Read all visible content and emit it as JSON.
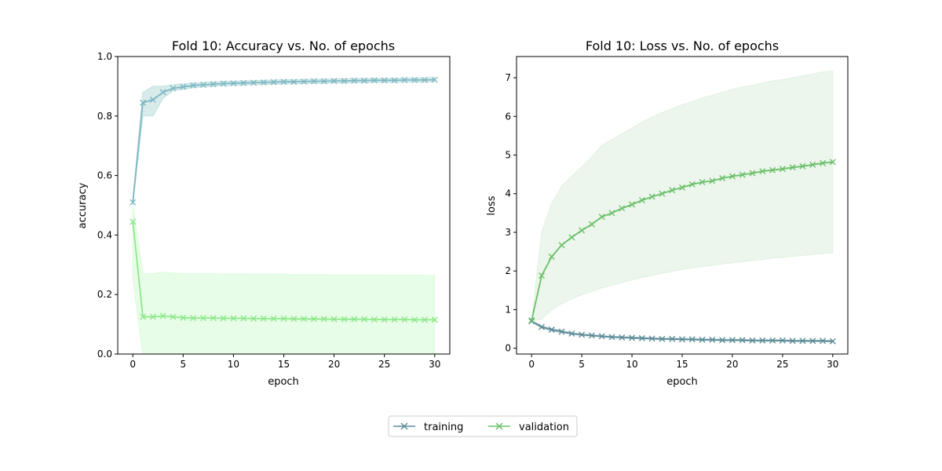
{
  "legend": {
    "entries": [
      {
        "label": "training",
        "color": "#5e8d99"
      },
      {
        "label": "validation",
        "color": "#6abf69"
      }
    ],
    "placement": "bottom-center"
  },
  "chart_data": [
    {
      "type": "line",
      "title": "Fold 10: Accuracy vs. No. of epochs",
      "xlabel": "epoch",
      "ylabel": "accuracy",
      "xlim": [
        -1.5,
        31.5
      ],
      "ylim": [
        0,
        1
      ],
      "xticks": [
        0,
        5,
        10,
        15,
        20,
        25,
        30
      ],
      "yticks": [
        0.0,
        0.2,
        0.4,
        0.6,
        0.8,
        1.0
      ],
      "ytick_labels": [
        "0.0",
        "0.2",
        "0.4",
        "0.6",
        "0.8",
        "1.0"
      ],
      "grid": false,
      "x": [
        0,
        1,
        2,
        3,
        4,
        5,
        6,
        7,
        8,
        9,
        10,
        11,
        12,
        13,
        14,
        15,
        16,
        17,
        18,
        19,
        20,
        21,
        22,
        23,
        24,
        25,
        26,
        27,
        28,
        29,
        30
      ],
      "series": [
        {
          "name": "training",
          "line_color": "#7fb8c4",
          "marker_color": "#7fb8c4",
          "band_color": "#b7dada",
          "values": [
            0.51,
            0.845,
            0.855,
            0.88,
            0.893,
            0.898,
            0.903,
            0.905,
            0.907,
            0.909,
            0.91,
            0.911,
            0.912,
            0.913,
            0.914,
            0.915,
            0.915,
            0.916,
            0.917,
            0.917,
            0.918,
            0.918,
            0.919,
            0.919,
            0.92,
            0.92,
            0.92,
            0.921,
            0.921,
            0.921,
            0.922
          ],
          "lower": [
            0.5,
            0.8,
            0.8,
            0.86,
            0.885,
            0.89,
            0.895,
            0.898,
            0.9,
            0.902,
            0.903,
            0.904,
            0.905,
            0.906,
            0.907,
            0.908,
            0.908,
            0.909,
            0.91,
            0.91,
            0.911,
            0.911,
            0.912,
            0.912,
            0.913,
            0.913,
            0.913,
            0.914,
            0.914,
            0.914,
            0.915
          ],
          "upper": [
            0.52,
            0.88,
            0.9,
            0.9,
            0.905,
            0.908,
            0.911,
            0.913,
            0.915,
            0.916,
            0.917,
            0.918,
            0.919,
            0.92,
            0.921,
            0.922,
            0.922,
            0.923,
            0.924,
            0.924,
            0.925,
            0.925,
            0.926,
            0.926,
            0.927,
            0.927,
            0.927,
            0.928,
            0.928,
            0.928,
            0.929
          ]
        },
        {
          "name": "validation",
          "line_color": "#8ee88a",
          "marker_color": "#8ee88a",
          "band_color": "#d4fbd4",
          "values": [
            0.445,
            0.125,
            0.125,
            0.128,
            0.125,
            0.122,
            0.121,
            0.121,
            0.121,
            0.12,
            0.12,
            0.12,
            0.119,
            0.119,
            0.119,
            0.119,
            0.118,
            0.118,
            0.118,
            0.118,
            0.117,
            0.117,
            0.117,
            0.117,
            0.116,
            0.116,
            0.116,
            0.116,
            0.115,
            0.115,
            0.115
          ],
          "lower": [
            0.25,
            0.0,
            0.0,
            0.0,
            0.0,
            0.0,
            0.0,
            0.0,
            0.0,
            0.0,
            0.0,
            0.0,
            0.0,
            0.0,
            0.0,
            0.0,
            0.0,
            0.0,
            0.0,
            0.0,
            0.0,
            0.0,
            0.0,
            0.0,
            0.0,
            0.0,
            0.0,
            0.0,
            0.0,
            0.0,
            0.0
          ],
          "upper": [
            0.5,
            0.27,
            0.27,
            0.275,
            0.272,
            0.27,
            0.27,
            0.27,
            0.27,
            0.269,
            0.269,
            0.269,
            0.268,
            0.268,
            0.268,
            0.268,
            0.267,
            0.267,
            0.267,
            0.267,
            0.266,
            0.266,
            0.266,
            0.266,
            0.266,
            0.265,
            0.265,
            0.265,
            0.265,
            0.264,
            0.264
          ]
        }
      ]
    },
    {
      "type": "line",
      "title": "Fold 10: Loss vs. No. of epochs",
      "xlabel": "epoch",
      "ylabel": "loss",
      "xlim": [
        -1.5,
        31.5
      ],
      "ylim": [
        -0.15,
        7.55
      ],
      "xticks": [
        0,
        5,
        10,
        15,
        20,
        25,
        30
      ],
      "yticks": [
        0,
        1,
        2,
        3,
        4,
        5,
        6,
        7
      ],
      "ytick_labels": [
        "0",
        "1",
        "2",
        "3",
        "4",
        "5",
        "6",
        "7"
      ],
      "grid": false,
      "x": [
        0,
        1,
        2,
        3,
        4,
        5,
        6,
        7,
        8,
        9,
        10,
        11,
        12,
        13,
        14,
        15,
        16,
        17,
        18,
        19,
        20,
        21,
        22,
        23,
        24,
        25,
        26,
        27,
        28,
        29,
        30
      ],
      "series": [
        {
          "name": "training",
          "line_color": "#5e8d99",
          "marker_color": "#5e8d99",
          "band_color": "#a9c6cc",
          "values": [
            0.7,
            0.55,
            0.48,
            0.43,
            0.38,
            0.35,
            0.33,
            0.31,
            0.29,
            0.28,
            0.27,
            0.26,
            0.25,
            0.24,
            0.24,
            0.23,
            0.23,
            0.22,
            0.22,
            0.21,
            0.21,
            0.21,
            0.2,
            0.2,
            0.2,
            0.2,
            0.19,
            0.19,
            0.19,
            0.19,
            0.18
          ],
          "lower": [
            0.68,
            0.52,
            0.45,
            0.4,
            0.36,
            0.33,
            0.31,
            0.29,
            0.27,
            0.26,
            0.25,
            0.24,
            0.23,
            0.22,
            0.22,
            0.21,
            0.21,
            0.2,
            0.2,
            0.19,
            0.19,
            0.19,
            0.18,
            0.18,
            0.18,
            0.18,
            0.17,
            0.17,
            0.17,
            0.17,
            0.16
          ],
          "upper": [
            0.72,
            0.58,
            0.51,
            0.46,
            0.4,
            0.37,
            0.35,
            0.33,
            0.31,
            0.3,
            0.29,
            0.28,
            0.27,
            0.26,
            0.26,
            0.25,
            0.25,
            0.24,
            0.24,
            0.23,
            0.23,
            0.23,
            0.22,
            0.22,
            0.22,
            0.22,
            0.21,
            0.21,
            0.21,
            0.21,
            0.2
          ]
        },
        {
          "name": "validation",
          "line_color": "#6abf69",
          "marker_color": "#6abf69",
          "band_color": "#dcefdc",
          "values": [
            0.72,
            1.88,
            2.37,
            2.67,
            2.87,
            3.05,
            3.21,
            3.4,
            3.5,
            3.62,
            3.72,
            3.83,
            3.92,
            4.0,
            4.09,
            4.16,
            4.24,
            4.3,
            4.33,
            4.4,
            4.45,
            4.49,
            4.53,
            4.58,
            4.61,
            4.64,
            4.68,
            4.71,
            4.75,
            4.79,
            4.82
          ],
          "lower": [
            0.7,
            0.75,
            1.0,
            1.15,
            1.28,
            1.38,
            1.47,
            1.56,
            1.63,
            1.7,
            1.77,
            1.83,
            1.88,
            1.94,
            1.99,
            2.04,
            2.08,
            2.11,
            2.14,
            2.18,
            2.21,
            2.24,
            2.27,
            2.3,
            2.33,
            2.35,
            2.38,
            2.4,
            2.43,
            2.45,
            2.47
          ],
          "upper": [
            0.74,
            3.0,
            3.75,
            4.2,
            4.45,
            4.7,
            4.95,
            5.25,
            5.4,
            5.55,
            5.7,
            5.85,
            5.98,
            6.1,
            6.2,
            6.3,
            6.38,
            6.48,
            6.55,
            6.62,
            6.7,
            6.76,
            6.8,
            6.87,
            6.92,
            6.95,
            7.0,
            7.05,
            7.1,
            7.15,
            7.18
          ]
        }
      ]
    }
  ]
}
